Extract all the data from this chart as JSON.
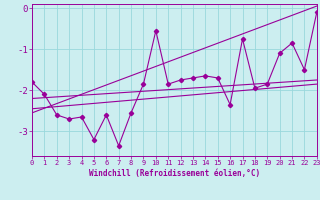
{
  "x": [
    0,
    1,
    2,
    3,
    4,
    5,
    6,
    7,
    8,
    9,
    10,
    11,
    12,
    13,
    14,
    15,
    16,
    17,
    18,
    19,
    20,
    21,
    22,
    23
  ],
  "y_data": [
    -1.8,
    -2.1,
    -2.6,
    -2.7,
    -2.65,
    -3.2,
    -2.6,
    -3.35,
    -2.55,
    -1.85,
    -0.55,
    -1.85,
    -1.75,
    -1.7,
    -1.65,
    -1.7,
    -2.35,
    -0.75,
    -1.95,
    -1.85,
    -1.1,
    -0.85,
    -1.5,
    -0.1
  ],
  "trend1_x": [
    0,
    23
  ],
  "trend1_y": [
    -2.2,
    -1.75
  ],
  "trend2_x": [
    0,
    23
  ],
  "trend2_y": [
    -2.45,
    -1.85
  ],
  "trend3_x": [
    0,
    23
  ],
  "trend3_y": [
    -2.55,
    0.05
  ],
  "bg_color": "#cceef0",
  "line_color": "#990099",
  "grid_color": "#99d8dc",
  "xlabel": "Windchill (Refroidissement éolien,°C)",
  "xlim": [
    0,
    23
  ],
  "ylim": [
    -3.6,
    0.1
  ],
  "yticks": [
    0,
    -1,
    -2,
    -3
  ],
  "xticks": [
    0,
    1,
    2,
    3,
    4,
    5,
    6,
    7,
    8,
    9,
    10,
    11,
    12,
    13,
    14,
    15,
    16,
    17,
    18,
    19,
    20,
    21,
    22,
    23
  ],
  "marker": "D",
  "markersize": 2.2,
  "linewidth": 0.8,
  "tick_fontsize": 5.0,
  "ytick_fontsize": 6.5,
  "xlabel_fontsize": 5.5
}
